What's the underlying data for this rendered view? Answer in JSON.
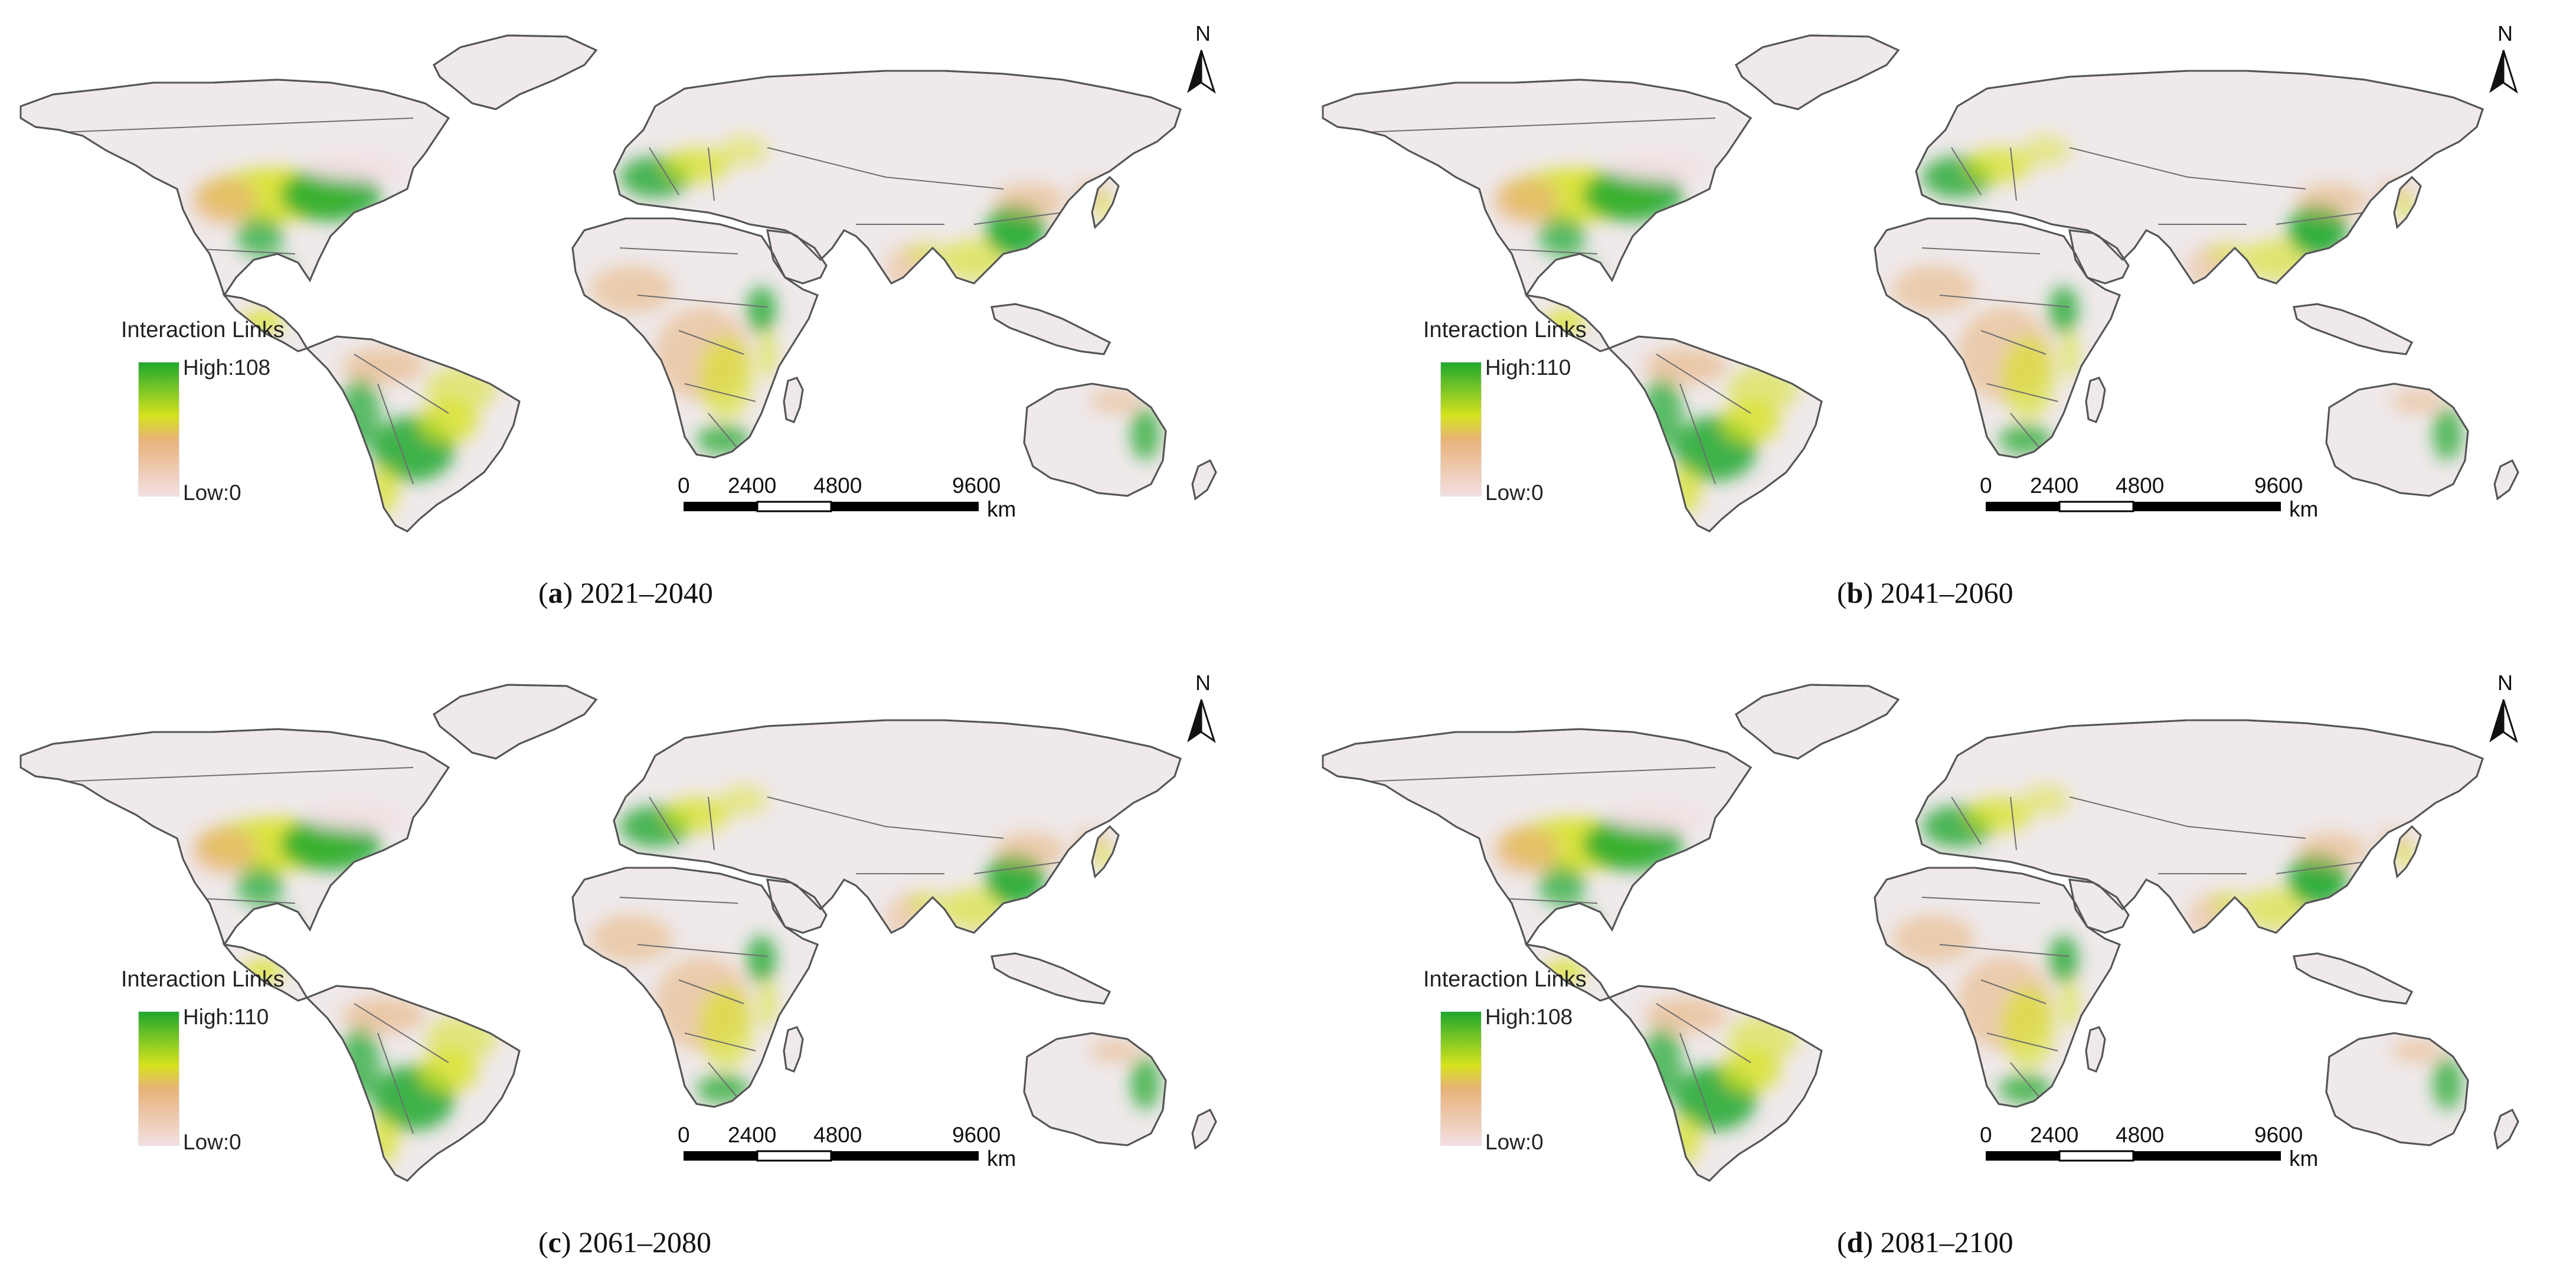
{
  "panels": [
    {
      "letter": "a",
      "period": "2021–2040",
      "legend_title": "Interaction Links",
      "high_label": "High:108",
      "low_label": "Low:0"
    },
    {
      "letter": "b",
      "period": "2041–2060",
      "legend_title": "Interaction Links",
      "high_label": "High:110",
      "low_label": "Low:0"
    },
    {
      "letter": "c",
      "period": "2061–2080",
      "legend_title": "Interaction Links",
      "high_label": "High:110",
      "low_label": "Low:0"
    },
    {
      "letter": "d",
      "period": "2081–2100",
      "legend_title": "Interaction Links",
      "high_label": "High:108",
      "low_label": "Low:0"
    }
  ],
  "north_arrow": "N",
  "scalebar": {
    "ticks": [
      "0",
      "2400",
      "4800",
      "9600"
    ],
    "unit": "km"
  },
  "colors": {
    "high": "#1fa82e",
    "mid": "#d6e21d",
    "orange": "#e8b27a",
    "low": "#f3dfe2",
    "land_base": "#efe9ea",
    "border": "#555555"
  },
  "icons": [
    "north-arrow-icon"
  ]
}
